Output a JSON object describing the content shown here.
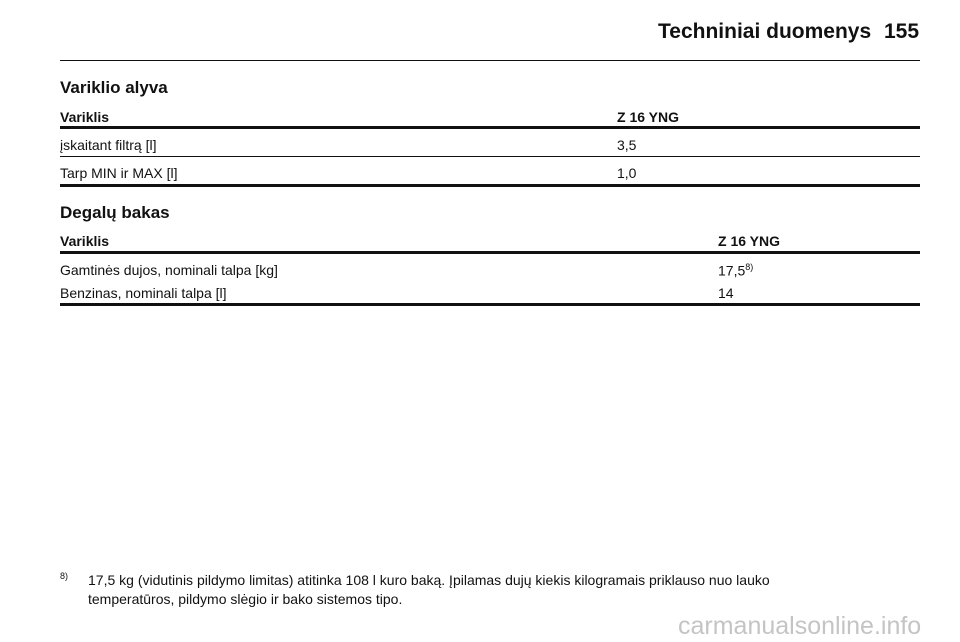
{
  "header": {
    "title": "Techniniai duomenys",
    "page": "155"
  },
  "sections": [
    {
      "title": "Variklio alyva",
      "columns": [
        "Variklis",
        "Z 16 YNG"
      ],
      "rows": [
        {
          "label": "įskaitant filtrą [l]",
          "value": "3,5"
        },
        {
          "label": "Tarp MIN ir MAX [l]",
          "value": "1,0"
        }
      ]
    },
    {
      "title": "Degalų bakas",
      "columns": [
        "Variklis",
        "Z 16 YNG"
      ],
      "rows": [
        {
          "label": "Gamtinės dujos, nominali talpa [kg]",
          "value": "17,5",
          "note": "8)"
        },
        {
          "label": "Benzinas, nominali talpa [l]",
          "value": "14"
        }
      ]
    }
  ],
  "footnote": {
    "marker": "8)",
    "lines": [
      "17,5 kg (vidutinis pildymo limitas) atitinka 108 l kuro baką. Įpilamas dujų kiekis kilogramais priklauso nuo lauko",
      "temperatūros, pildymo slėgio ir bako sistemos tipo."
    ]
  },
  "watermark": "carmanualsonline.info"
}
